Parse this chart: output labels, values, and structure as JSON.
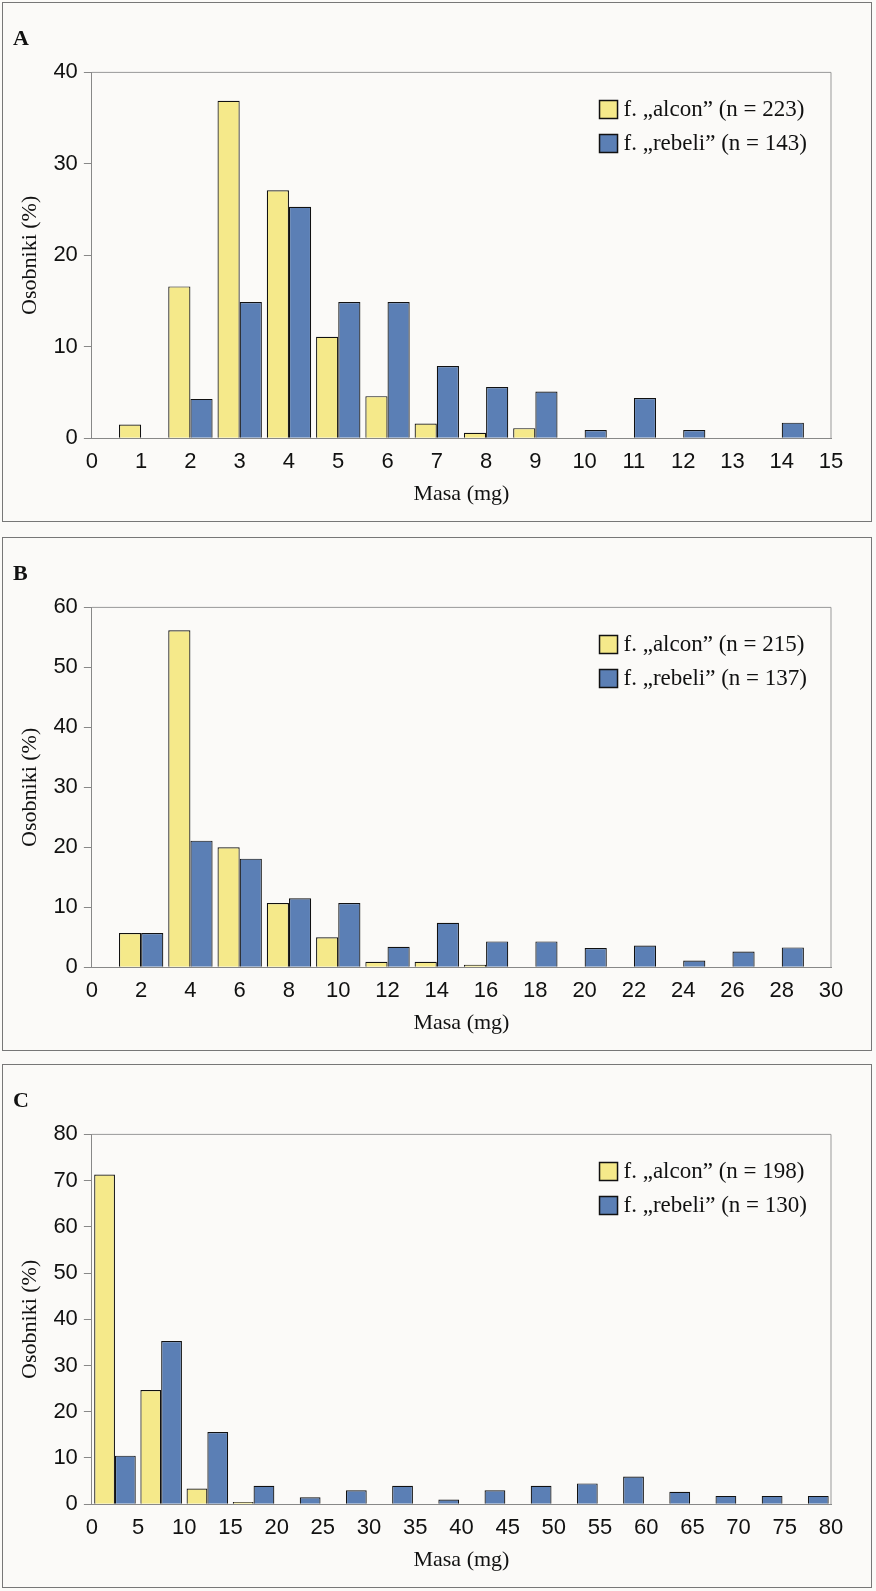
{
  "chart_data": [
    {
      "type": "bar",
      "title": "A",
      "xlabel": "Masa (mg)",
      "ylabel": "Osobniki (%)",
      "xlim": [
        0,
        15
      ],
      "xticks": [
        0,
        1,
        2,
        3,
        4,
        5,
        6,
        7,
        8,
        9,
        10,
        11,
        12,
        13,
        14,
        15
      ],
      "ylim": [
        0,
        40
      ],
      "yticks": [
        0,
        10,
        20,
        30,
        40
      ],
      "grid": false,
      "legend": "top right",
      "series": [
        {
          "name": "f. „alcon” (n = 223)",
          "color": "#f5e98a",
          "x": [
            1,
            2,
            3,
            4,
            5,
            6,
            7,
            8,
            9,
            10,
            11,
            12,
            13,
            14
          ],
          "values": [
            1.5,
            16.6,
            36.9,
            27.1,
            11.1,
            4.6,
            1.6,
            0.6,
            1.1,
            0,
            0,
            0,
            0,
            0
          ]
        },
        {
          "name": "f. „rebeli” (n = 143)",
          "color": "#5b7fb5",
          "x": [
            1,
            2,
            3,
            4,
            5,
            6,
            7,
            8,
            9,
            10,
            11,
            12,
            13,
            14
          ],
          "values": [
            0,
            4.3,
            14.9,
            25.3,
            14.9,
            14.9,
            7.9,
            5.6,
            5.1,
            0.9,
            4.4,
            0.9,
            0,
            1.7
          ]
        }
      ]
    },
    {
      "type": "bar",
      "title": "B",
      "xlabel": "Masa (mg)",
      "ylabel": "Osobniki (%)",
      "xlim": [
        0,
        30
      ],
      "xticks": [
        0,
        2,
        4,
        6,
        8,
        10,
        12,
        14,
        16,
        18,
        20,
        22,
        24,
        26,
        28,
        30
      ],
      "ylim": [
        0,
        60
      ],
      "yticks": [
        0,
        10,
        20,
        30,
        40,
        50,
        60
      ],
      "grid": false,
      "legend": "top right",
      "series": [
        {
          "name": "f. „alcon” (n = 215)",
          "color": "#f5e98a",
          "x": [
            2,
            4,
            6,
            8,
            10,
            12,
            14,
            16,
            18,
            20,
            22,
            24,
            26,
            28
          ],
          "values": [
            5.7,
            56.2,
            20,
            10.7,
            5,
            0.9,
            0.9,
            0.4,
            0,
            0,
            0,
            0,
            0,
            0
          ]
        },
        {
          "name": "f. „rebeli” (n = 137)",
          "color": "#5b7fb5",
          "x": [
            2,
            4,
            6,
            8,
            10,
            12,
            14,
            16,
            18,
            20,
            22,
            24,
            26,
            28
          ],
          "values": [
            5.7,
            21.1,
            18.1,
            11.5,
            10.7,
            3.4,
            7.4,
            4.3,
            4.3,
            3.2,
            3.6,
            1.1,
            2.6,
            3.3
          ]
        }
      ]
    },
    {
      "type": "bar",
      "title": "C",
      "xlabel": "Masa (mg)",
      "ylabel": "Osobniki (%)",
      "xlim": [
        0,
        80
      ],
      "xticks": [
        0,
        5,
        10,
        15,
        20,
        25,
        30,
        35,
        40,
        45,
        50,
        55,
        60,
        65,
        70,
        75,
        80
      ],
      "ylim": [
        0,
        80
      ],
      "yticks": [
        0,
        10,
        20,
        30,
        40,
        50,
        60,
        70,
        80
      ],
      "grid": false,
      "legend": "top right",
      "series": [
        {
          "name": "f. „alcon” (n = 198)",
          "color": "#f5e98a",
          "x": [
            2.5,
            7.5,
            12.5,
            17.5,
            22.5,
            27.5,
            32.5,
            37.5,
            42.5,
            47.5,
            52.5,
            57.5,
            62.5,
            67.5,
            72.5,
            77.5
          ],
          "values": [
            71.3,
            24.7,
            3.4,
            0.5,
            0,
            0,
            0,
            0,
            0,
            0,
            0,
            0,
            0,
            0,
            0,
            0
          ]
        },
        {
          "name": "f. „rebeli” (n = 130)",
          "color": "#5b7fb5",
          "x": [
            2.5,
            7.5,
            12.5,
            17.5,
            22.5,
            27.5,
            32.5,
            37.5,
            42.5,
            47.5,
            52.5,
            57.5,
            62.5,
            67.5,
            72.5,
            77.5
          ],
          "values": [
            10.5,
            35.3,
            15.6,
            4,
            1.5,
            3,
            4,
            1,
            3,
            4,
            4.5,
            6,
            2.7,
            1.8,
            1.8,
            1.8
          ]
        }
      ]
    }
  ]
}
